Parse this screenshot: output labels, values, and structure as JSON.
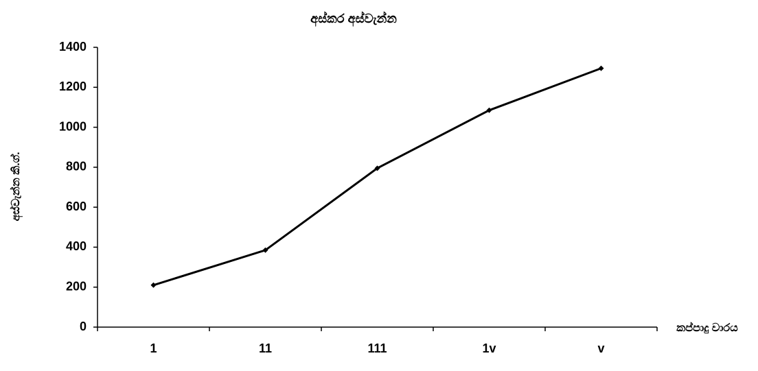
{
  "chart_data": {
    "type": "line",
    "title": "අස්කර අස්වැන්න",
    "y_label": "අස්වැන්න කි.ග්.",
    "x_label": "කප්පාදු වාරය",
    "categories": [
      "1",
      "11",
      "111",
      "1v",
      "v"
    ],
    "values": [
      210,
      385,
      795,
      1085,
      1295
    ],
    "color": "#000000",
    "ylim": [
      0,
      1400
    ],
    "yticks": [
      0,
      200,
      400,
      600,
      800,
      1000,
      1200,
      1400
    ],
    "grid": false
  }
}
